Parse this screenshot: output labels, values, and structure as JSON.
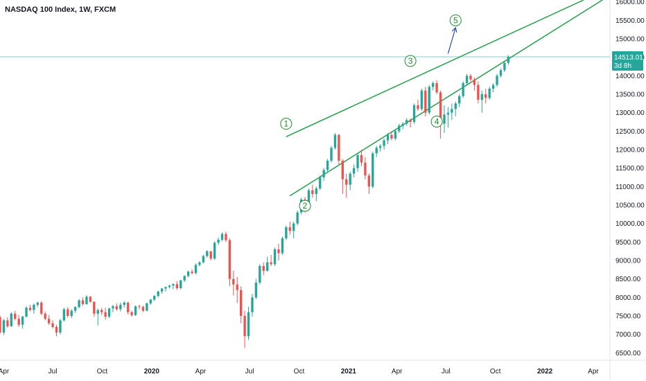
{
  "header": {
    "title": "NASDAQ 100 Index, 1W, FXCM"
  },
  "colors": {
    "up": "#26a69a",
    "down": "#ef5350",
    "channel": "#1fa04a",
    "wave": "#1b8c2a",
    "arrow": "#2b4fb8",
    "price_line": "#7fd3cd",
    "price_tag": "#26a69a"
  },
  "chart_data": {
    "type": "candlestick",
    "title": "NASDAQ 100 Index, 1W, FXCM",
    "y_axis": {
      "ticks": [
        6500,
        7000,
        7500,
        8000,
        8500,
        9000,
        9500,
        10000,
        10500,
        11000,
        11500,
        12000,
        12500,
        13000,
        13500,
        14000,
        14500,
        15000,
        15500,
        16000
      ],
      "tick_labels": [
        "6500.00",
        "7000.00",
        "7500.00",
        "8000.00",
        "8500.00",
        "9000.00",
        "9500.00",
        "10000.00",
        "10500.00",
        "11000.00",
        "11500.00",
        "12000.00",
        "12500.00",
        "13000.00",
        "13500.00",
        "14000.00",
        "14500.00",
        "15000.00",
        "15500.00",
        "16000.00"
      ],
      "range": [
        6300,
        16050
      ]
    },
    "x_axis": {
      "range": [
        "2019-03-25",
        "2022-05-02"
      ],
      "ticks": [
        {
          "date": "2019-04-01",
          "label": "Apr",
          "bold": false
        },
        {
          "date": "2019-07-01",
          "label": "Jul",
          "bold": false
        },
        {
          "date": "2019-10-01",
          "label": "Oct",
          "bold": false
        },
        {
          "date": "2020-01-01",
          "label": "2020",
          "bold": true
        },
        {
          "date": "2020-04-01",
          "label": "Apr",
          "bold": false
        },
        {
          "date": "2020-07-01",
          "label": "Jul",
          "bold": false
        },
        {
          "date": "2020-10-01",
          "label": "Oct",
          "bold": false
        },
        {
          "date": "2021-01-01",
          "label": "2021",
          "bold": true
        },
        {
          "date": "2021-04-01",
          "label": "Apr",
          "bold": false
        },
        {
          "date": "2021-07-01",
          "label": "Jul",
          "bold": false
        },
        {
          "date": "2021-10-01",
          "label": "Oct",
          "bold": false
        },
        {
          "date": "2022-01-01",
          "label": "2022",
          "bold": true
        },
        {
          "date": "2022-04-01",
          "label": "Apr",
          "bold": false
        }
      ]
    },
    "current_price": {
      "value": 14513.01,
      "label": "14513.01",
      "countdown": "3d 8h"
    },
    "candles": {
      "start": "2019-03-25",
      "interval": "1W",
      "ohlc": [
        [
          7460,
          7510,
          7010,
          7050
        ],
        [
          7050,
          7420,
          6980,
          7380
        ],
        [
          7380,
          7460,
          7180,
          7220
        ],
        [
          7220,
          7600,
          7200,
          7560
        ],
        [
          7560,
          7640,
          7380,
          7420
        ],
        [
          7420,
          7520,
          7200,
          7260
        ],
        [
          7260,
          7500,
          7150,
          7480
        ],
        [
          7480,
          7760,
          7460,
          7720
        ],
        [
          7720,
          7800,
          7620,
          7660
        ],
        [
          7660,
          7840,
          7560,
          7800
        ],
        [
          7800,
          7880,
          7740,
          7860
        ],
        [
          7860,
          7900,
          7520,
          7560
        ],
        [
          7560,
          7620,
          7380,
          7420
        ],
        [
          7420,
          7520,
          7260,
          7300
        ],
        [
          7300,
          7380,
          7160,
          7200
        ],
        [
          7200,
          7260,
          6950,
          7050
        ],
        [
          7050,
          7420,
          7000,
          7380
        ],
        [
          7380,
          7720,
          7340,
          7680
        ],
        [
          7680,
          7740,
          7460,
          7500
        ],
        [
          7500,
          7680,
          7440,
          7640
        ],
        [
          7640,
          7760,
          7580,
          7740
        ],
        [
          7740,
          7960,
          7700,
          7920
        ],
        [
          7920,
          8000,
          7780,
          7820
        ],
        [
          7820,
          8060,
          7800,
          8020
        ],
        [
          8020,
          8040,
          7860,
          7880
        ],
        [
          7880,
          7900,
          7480,
          7560
        ],
        [
          7560,
          7700,
          7240,
          7660
        ],
        [
          7660,
          7720,
          7520,
          7600
        ],
        [
          7600,
          7720,
          7400,
          7480
        ],
        [
          7480,
          7720,
          7440,
          7700
        ],
        [
          7700,
          7800,
          7600,
          7760
        ],
        [
          7760,
          7840,
          7640,
          7680
        ],
        [
          7680,
          7860,
          7620,
          7800
        ],
        [
          7800,
          7900,
          7720,
          7860
        ],
        [
          7860,
          7880,
          7540,
          7600
        ],
        [
          7600,
          7640,
          7480,
          7520
        ],
        [
          7520,
          7780,
          7500,
          7760
        ],
        [
          7760,
          7800,
          7680,
          7740
        ],
        [
          7740,
          7780,
          7600,
          7640
        ],
        [
          7640,
          7860,
          7620,
          7840
        ],
        [
          7840,
          7960,
          7800,
          7940
        ],
        [
          7940,
          8060,
          7900,
          8040
        ],
        [
          8040,
          8180,
          8000,
          8160
        ],
        [
          8160,
          8250,
          8100,
          8240
        ],
        [
          8240,
          8300,
          8160,
          8280
        ],
        [
          8280,
          8340,
          8240,
          8320
        ],
        [
          8320,
          8380,
          8220,
          8360
        ],
        [
          8360,
          8440,
          8200,
          8250
        ],
        [
          8250,
          8480,
          8220,
          8460
        ],
        [
          8460,
          8600,
          8420,
          8580
        ],
        [
          8580,
          8720,
          8540,
          8700
        ],
        [
          8700,
          8760,
          8620,
          8660
        ],
        [
          8660,
          8920,
          8620,
          8880
        ],
        [
          8880,
          8980,
          8840,
          8950
        ],
        [
          8950,
          9150,
          8920,
          9120
        ],
        [
          9120,
          9280,
          9080,
          9250
        ],
        [
          9250,
          9240,
          9000,
          9050
        ],
        [
          9050,
          9520,
          9020,
          9480
        ],
        [
          9480,
          9620,
          9420,
          9560
        ],
        [
          9560,
          9760,
          9520,
          9720
        ],
        [
          9720,
          9780,
          9500,
          9550
        ],
        [
          9550,
          9600,
          8300,
          8500
        ],
        [
          8500,
          8720,
          8050,
          8350
        ],
        [
          8350,
          8550,
          7850,
          8200
        ],
        [
          8200,
          8300,
          7300,
          7500
        ],
        [
          7500,
          7640,
          6630,
          6950
        ],
        [
          6950,
          7750,
          6850,
          7600
        ],
        [
          7600,
          8100,
          7480,
          8000
        ],
        [
          8000,
          8500,
          7950,
          8400
        ],
        [
          8400,
          8900,
          8350,
          8850
        ],
        [
          8850,
          8950,
          8600,
          8720
        ],
        [
          8720,
          9100,
          8700,
          8950
        ],
        [
          8950,
          9150,
          8850,
          8900
        ],
        [
          8900,
          9350,
          8850,
          9300
        ],
        [
          9300,
          9450,
          9000,
          9200
        ],
        [
          9200,
          9650,
          9150,
          9600
        ],
        [
          9600,
          9950,
          9550,
          9900
        ],
        [
          9900,
          10050,
          9700,
          9800
        ],
        [
          9800,
          10050,
          9600,
          10000
        ],
        [
          10000,
          10350,
          9950,
          10300
        ],
        [
          10300,
          10700,
          10250,
          10650
        ],
        [
          10650,
          10720,
          10300,
          10400
        ],
        [
          10400,
          10950,
          10350,
          10900
        ],
        [
          10900,
          11050,
          10700,
          10800
        ],
        [
          10800,
          11000,
          10600,
          10950
        ],
        [
          10950,
          11300,
          10900,
          11250
        ],
        [
          11250,
          11500,
          11150,
          11450
        ],
        [
          11450,
          11750,
          11400,
          11700
        ],
        [
          11700,
          12100,
          11650,
          12050
        ],
        [
          12050,
          12450,
          12000,
          12400
        ],
        [
          12400,
          12420,
          11600,
          11700
        ],
        [
          11700,
          11750,
          10800,
          11200
        ],
        [
          11200,
          11350,
          10700,
          11050
        ],
        [
          11050,
          11400,
          10900,
          11350
        ],
        [
          11350,
          11600,
          11250,
          11500
        ],
        [
          11500,
          11900,
          11400,
          11850
        ],
        [
          11850,
          12000,
          11550,
          11650
        ],
        [
          11650,
          11800,
          11200,
          11300
        ],
        [
          11300,
          11350,
          10800,
          11000
        ],
        [
          11000,
          11950,
          10950,
          11900
        ],
        [
          11900,
          12100,
          11800,
          12050
        ],
        [
          12050,
          12150,
          11950,
          12100
        ],
        [
          12100,
          12300,
          12000,
          12250
        ],
        [
          12250,
          12450,
          12150,
          12400
        ],
        [
          12400,
          12500,
          12250,
          12300
        ],
        [
          12300,
          12550,
          12250,
          12500
        ],
        [
          12500,
          12700,
          12450,
          12650
        ],
        [
          12650,
          12750,
          12550,
          12700
        ],
        [
          12700,
          12850,
          12650,
          12800
        ],
        [
          12800,
          12850,
          12600,
          12750
        ],
        [
          12750,
          13250,
          12700,
          13200
        ],
        [
          13200,
          13350,
          13050,
          13100
        ],
        [
          13100,
          13650,
          13050,
          13600
        ],
        [
          13600,
          13700,
          12900,
          13000
        ],
        [
          13000,
          13750,
          12950,
          13700
        ],
        [
          13700,
          13850,
          13600,
          13800
        ],
        [
          13800,
          13880,
          13500,
          13550
        ],
        [
          13550,
          13600,
          12300,
          12700
        ],
        [
          12700,
          13200,
          12450,
          12950
        ],
        [
          12950,
          13150,
          12600,
          13000
        ],
        [
          13000,
          13250,
          12800,
          13100
        ],
        [
          13100,
          13300,
          12900,
          13250
        ],
        [
          13250,
          13500,
          13150,
          13450
        ],
        [
          13450,
          13850,
          13400,
          13800
        ],
        [
          13800,
          14050,
          13750,
          14000
        ],
        [
          14000,
          14050,
          13850,
          13900
        ],
        [
          13900,
          13950,
          13600,
          13750
        ],
        [
          13750,
          13850,
          13250,
          13350
        ],
        [
          13350,
          13600,
          13000,
          13500
        ],
        [
          13500,
          13650,
          13250,
          13400
        ],
        [
          13400,
          13700,
          13350,
          13650
        ],
        [
          13650,
          13800,
          13550,
          13750
        ],
        [
          13750,
          14050,
          13700,
          14000
        ],
        [
          14000,
          14200,
          13950,
          14150
        ],
        [
          14150,
          14380,
          14100,
          14350
        ],
        [
          14350,
          14560,
          14300,
          14513
        ]
      ]
    },
    "overlays": {
      "channel_upper": {
        "from": [
          "2020-09-07",
          12350
        ],
        "to": [
          "2022-03-14",
          16050
        ]
      },
      "channel_lower": {
        "from": [
          "2020-09-14",
          10750
        ],
        "to": [
          "2022-04-18",
          16050
        ]
      },
      "wave_labels": [
        {
          "label": "1",
          "date": "2020-09-07",
          "price": 12700
        },
        {
          "label": "2",
          "date": "2020-10-12",
          "price": 10480
        },
        {
          "label": "3",
          "date": "2021-04-26",
          "price": 14400
        },
        {
          "label": "4",
          "date": "2021-06-14",
          "price": 12760
        },
        {
          "label": "5",
          "date": "2021-07-19",
          "price": 15500
        }
      ],
      "projection_arrow": {
        "from": [
          "2021-07-05",
          14600
        ],
        "to": [
          "2021-07-19",
          15300
        ]
      }
    }
  }
}
